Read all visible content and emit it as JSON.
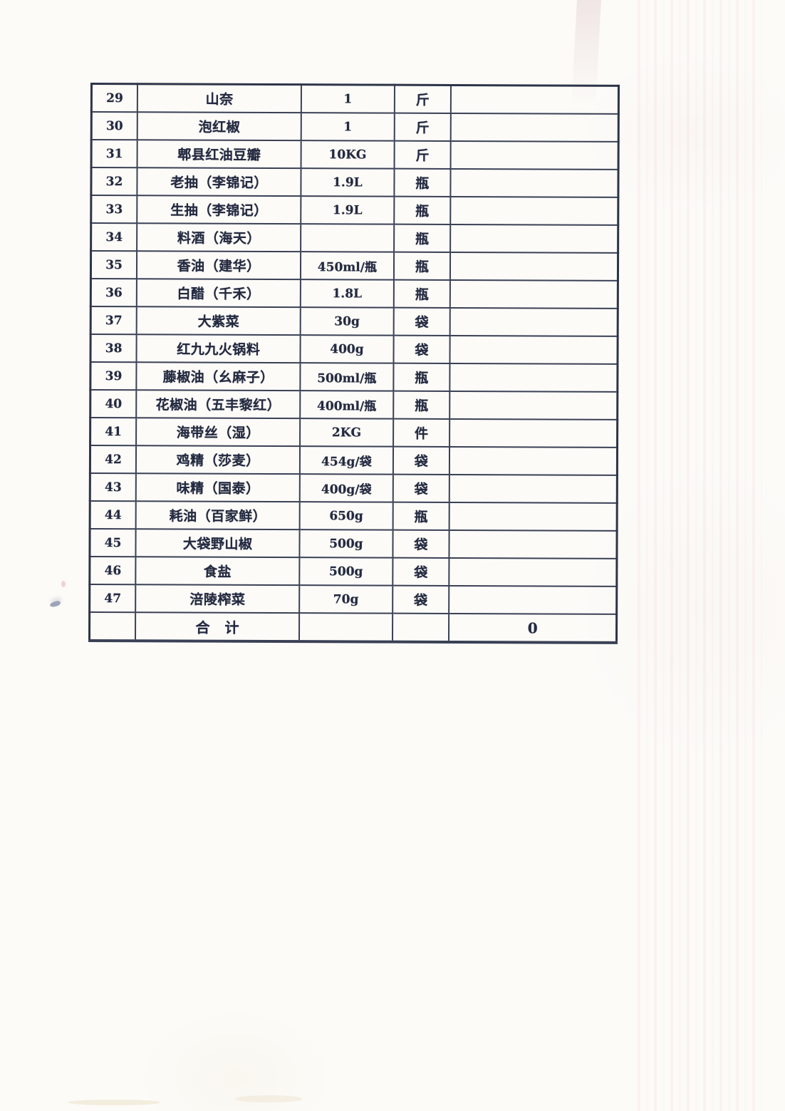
{
  "document_kind": "scanned-procurement-table-page",
  "colors": {
    "paper": "#fcfbf8",
    "ink": "#242a40",
    "grid_line": "#3a4055",
    "streak_pink": "#deb0b0"
  },
  "table": {
    "rows": [
      {
        "no": "29",
        "name": "山奈",
        "spec": "1",
        "unit": "斤",
        "amount": ""
      },
      {
        "no": "30",
        "name": "泡红椒",
        "spec": "1",
        "unit": "斤",
        "amount": ""
      },
      {
        "no": "31",
        "name": "郫县红油豆瓣",
        "spec": "10KG",
        "unit": "斤",
        "amount": ""
      },
      {
        "no": "32",
        "name": "老抽（李锦记）",
        "spec": "1.9L",
        "unit": "瓶",
        "amount": ""
      },
      {
        "no": "33",
        "name": "生抽（李锦记）",
        "spec": "1.9L",
        "unit": "瓶",
        "amount": ""
      },
      {
        "no": "34",
        "name": "料酒（海天）",
        "spec": "",
        "unit": "瓶",
        "amount": ""
      },
      {
        "no": "35",
        "name": "香油（建华）",
        "spec": "450ml/瓶",
        "unit": "瓶",
        "amount": ""
      },
      {
        "no": "36",
        "name": "白醋（千禾）",
        "spec": "1.8L",
        "unit": "瓶",
        "amount": ""
      },
      {
        "no": "37",
        "name": "大紫菜",
        "spec": "30g",
        "unit": "袋",
        "amount": ""
      },
      {
        "no": "38",
        "name": "红九九火锅料",
        "spec": "400g",
        "unit": "袋",
        "amount": ""
      },
      {
        "no": "39",
        "name": "藤椒油（幺麻子）",
        "spec": "500ml/瓶",
        "unit": "瓶",
        "amount": ""
      },
      {
        "no": "40",
        "name": "花椒油（五丰黎红）",
        "spec": "400ml/瓶",
        "unit": "瓶",
        "amount": ""
      },
      {
        "no": "41",
        "name": "海带丝（湿）",
        "spec": "2KG",
        "unit": "件",
        "amount": ""
      },
      {
        "no": "42",
        "name": "鸡精（莎麦）",
        "spec": "454g/袋",
        "unit": "袋",
        "amount": ""
      },
      {
        "no": "43",
        "name": "味精（国泰）",
        "spec": "400g/袋",
        "unit": "袋",
        "amount": ""
      },
      {
        "no": "44",
        "name": "耗油（百家鲜）",
        "spec": "650g",
        "unit": "瓶",
        "amount": ""
      },
      {
        "no": "45",
        "name": "大袋野山椒",
        "spec": "500g",
        "unit": "袋",
        "amount": ""
      },
      {
        "no": "46",
        "name": "食盐",
        "spec": "500g",
        "unit": "袋",
        "amount": ""
      },
      {
        "no": "47",
        "name": "涪陵榨菜",
        "spec": "70g",
        "unit": "袋",
        "amount": ""
      }
    ],
    "total": {
      "no": "",
      "label": "合　计",
      "spec": "",
      "unit": "",
      "amount": "0"
    }
  }
}
